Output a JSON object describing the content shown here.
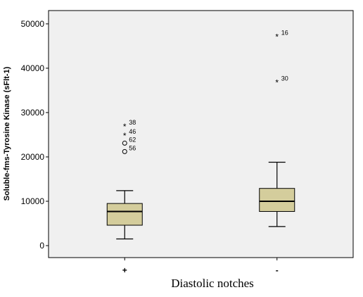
{
  "chart_data": {
    "type": "boxplot",
    "xlabel": "Diastolic notches",
    "ylabel": "Soluble-fms-Tyrosine Kinase (sFlt-1)",
    "ylim": [
      -2700,
      53000
    ],
    "yticks": [
      0,
      10000,
      20000,
      30000,
      40000,
      50000
    ],
    "grid": false,
    "colors": {
      "plot_bg": "#f0f0f0",
      "box_fill": "#d4cd9c",
      "line": "#000000"
    },
    "categories": [
      "+",
      "-"
    ],
    "boxes": [
      {
        "category": "+",
        "whisker_low": 1500,
        "q1": 4600,
        "median": 7700,
        "q3": 9500,
        "whisker_high": 12400,
        "outliers": [
          {
            "label": "38",
            "value": 27000,
            "marker": "star"
          },
          {
            "label": "46",
            "value": 24900,
            "marker": "star"
          },
          {
            "label": "62",
            "value": 23100,
            "marker": "circle"
          },
          {
            "label": "56",
            "value": 21200,
            "marker": "circle"
          }
        ]
      },
      {
        "category": "-",
        "whisker_low": 4300,
        "q1": 7700,
        "median": 10000,
        "q3": 12900,
        "whisker_high": 18800,
        "outliers": [
          {
            "label": "16",
            "value": 47200,
            "marker": "star"
          },
          {
            "label": "30",
            "value": 36900,
            "marker": "star"
          }
        ]
      }
    ]
  }
}
